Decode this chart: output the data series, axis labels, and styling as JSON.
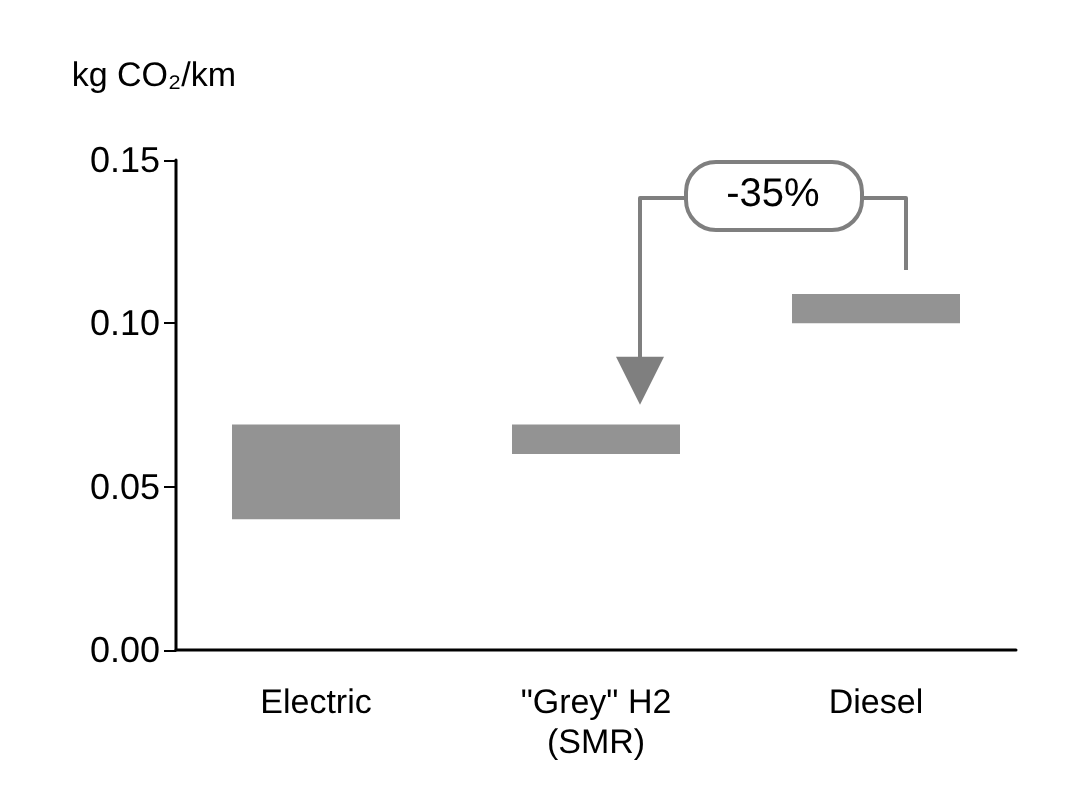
{
  "chart_data": {
    "type": "bar",
    "ylabel": "kg CO₂/km",
    "categories": [
      "Electric",
      "\"Grey\" H2\n(SMR)",
      "Diesel"
    ],
    "values": [
      0.029,
      0.009,
      0.009
    ],
    "base": [
      0.04,
      0.06,
      0.1
    ],
    "color": "#939393",
    "ylim": [
      0,
      0.15
    ],
    "yticks": [
      {
        "value": 0,
        "label": "0.00"
      },
      {
        "value": 0.05,
        "label": "0.05"
      },
      {
        "value": 0.1,
        "label": "0.10"
      },
      {
        "value": 0.15,
        "label": "0.15"
      }
    ],
    "grid": false,
    "annotations": [
      "-35%"
    ]
  }
}
